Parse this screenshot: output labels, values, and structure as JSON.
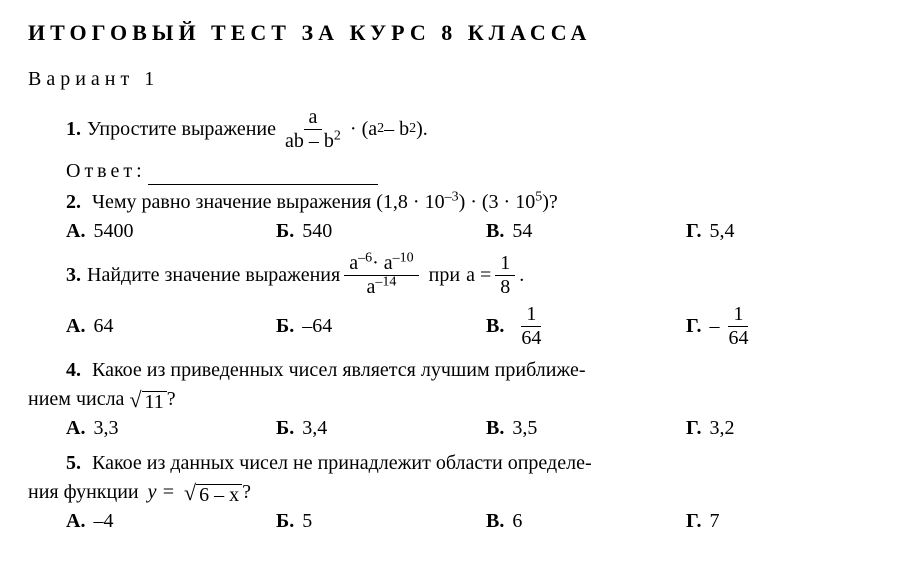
{
  "title": "ИТОГОВЫЙ ТЕСТ ЗА КУРС 8 КЛАССА",
  "variant": "Вариант 1",
  "answer_label": "Ответ:",
  "q1": {
    "n": "1.",
    "text_a": "Упростите выражение",
    "frac_num": "a",
    "frac_den_a": "ab – b",
    "frac_den_sup": "2",
    "mid": "· (a",
    "sup1": "2",
    "mid2": " – b",
    "sup2": "2",
    "tail": " )."
  },
  "q2": {
    "n": "2.",
    "text": "Чему равно значение выражения (1,8 · 10",
    "sup1": "–3",
    "mid": ") · (3 · 10",
    "sup2": "5",
    "tail": ")?",
    "A": "5400",
    "B": "540",
    "C": "54",
    "D": "5,4"
  },
  "q3": {
    "n": "3.",
    "text": "Найдите значение выражения",
    "num_a": "a",
    "num_sup1": "–6",
    "num_dot": "· a",
    "num_sup2": "–10",
    "den_a": "a",
    "den_sup": "–14",
    "tail1": "при",
    "eq": "a =",
    "frac2_num": "1",
    "frac2_den": "8",
    "dot": ".",
    "A": "64",
    "B": "–64",
    "C_num": "1",
    "C_den": "64",
    "D_neg": "–",
    "D_num": "1",
    "D_den": "64"
  },
  "q4": {
    "n": "4.",
    "line1": "Какое из приведенных чисел является лучшим приближе-",
    "line2_a": "нием числа",
    "sqrt_body": "11",
    "line2_b": "?",
    "A": "3,3",
    "B": "3,4",
    "C": "3,5",
    "D": "3,2"
  },
  "q5": {
    "n": "5.",
    "line1": "Какое из данных чисел не принадлежит области определе-",
    "line2_a": "ния функции",
    "eq": "y =",
    "sqrt_body": "6 – x",
    "line2_b": "?",
    "A": "–4",
    "B": "5",
    "C": "6",
    "D": "7"
  },
  "labels": {
    "A": "А.",
    "B": "Б.",
    "C": "В.",
    "D": "Г."
  }
}
